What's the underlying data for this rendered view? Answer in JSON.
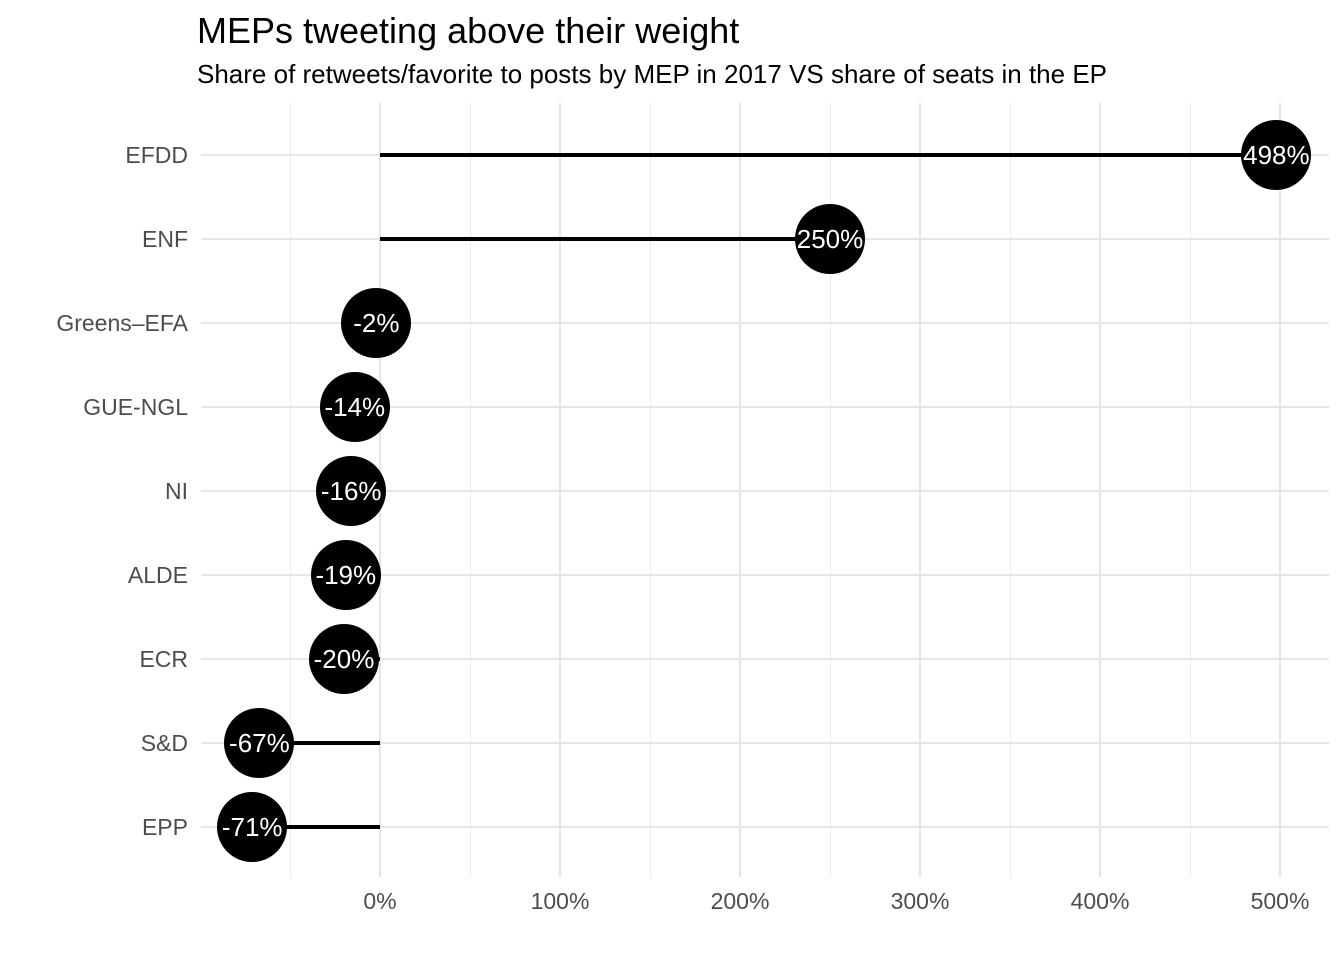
{
  "title": "MEPs tweeting above their weight",
  "subtitle": "Share of retweets/favorite to posts by MEP in 2017 VS share of seats in the EP",
  "chart_data": {
    "type": "lollipop",
    "orientation": "horizontal",
    "title": "MEPs tweeting above their weight",
    "subtitle": "Share of retweets/favorite to posts by MEP in 2017 VS share of seats in the EP",
    "categories": [
      "EFDD",
      "ENF",
      "Greens–EFA",
      "GUE-NGL",
      "NI",
      "ALDE",
      "ECR",
      "S&D",
      "EPP"
    ],
    "values": [
      498,
      250,
      -2,
      -14,
      -16,
      -19,
      -20,
      -67,
      -71
    ],
    "point_labels": [
      "498%",
      "250%",
      "-2%",
      "-14%",
      "-16%",
      "-19%",
      "-20%",
      "-67%",
      "-71%"
    ],
    "baseline": 0,
    "xlabel": "",
    "ylabel": "",
    "xlim": [
      -99,
      526
    ],
    "x_major_ticks": [
      0,
      100,
      200,
      300,
      400,
      500
    ],
    "x_tick_labels": [
      "0%",
      "100%",
      "200%",
      "300%",
      "400%",
      "500%"
    ],
    "x_minor_ticks": [
      -50,
      50,
      150,
      250,
      350,
      450
    ],
    "grid": "major and minor vertical, major horizontal per category",
    "legend": "none",
    "colors": {
      "point": "#000000",
      "stem": "#000000",
      "point_text": "#ffffff",
      "axis_text": "#4d4d4d",
      "grid_major": "#e5e5e5",
      "grid_minor": "#ebebeb",
      "background": "#ffffff"
    }
  }
}
